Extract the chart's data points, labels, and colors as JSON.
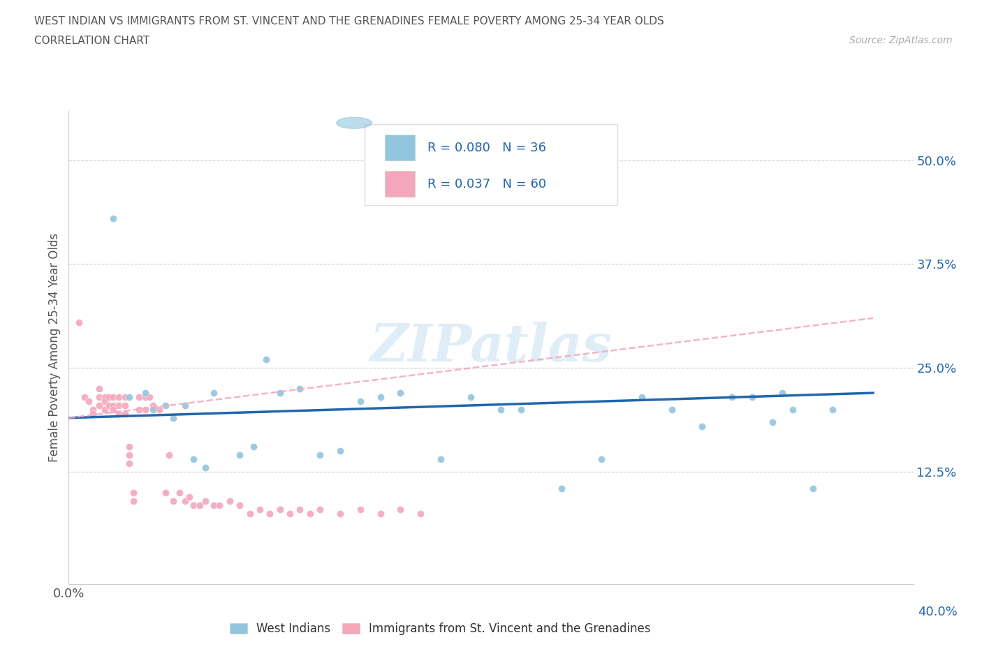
{
  "title_line1": "WEST INDIAN VS IMMIGRANTS FROM ST. VINCENT AND THE GRENADINES FEMALE POVERTY AMONG 25-34 YEAR OLDS",
  "title_line2": "CORRELATION CHART",
  "source": "Source: ZipAtlas.com",
  "ylabel": "Female Poverty Among 25-34 Year Olds",
  "watermark": "ZIPatlas",
  "legend_r1": "R = 0.080",
  "legend_n1": "N = 36",
  "legend_r2": "R = 0.037",
  "legend_n2": "N = 60",
  "xlim": [
    0.0,
    0.42
  ],
  "ylim": [
    -0.01,
    0.56
  ],
  "yticks": [
    0.0,
    0.125,
    0.25,
    0.375,
    0.5
  ],
  "ytick_labels": [
    "",
    "12.5%",
    "25.0%",
    "37.5%",
    "50.0%"
  ],
  "color_blue": "#92c5de",
  "color_pink": "#f4a6bd",
  "line_blue": "#2166ac",
  "line_pink": "#d6604d",
  "blue_scatter_x": [
    0.022,
    0.03,
    0.038,
    0.042,
    0.048,
    0.052,
    0.058,
    0.062,
    0.068,
    0.072,
    0.085,
    0.092,
    0.098,
    0.105,
    0.115,
    0.125,
    0.135,
    0.145,
    0.155,
    0.165,
    0.185,
    0.2,
    0.215,
    0.225,
    0.245,
    0.265,
    0.285,
    0.3,
    0.315,
    0.33,
    0.34,
    0.35,
    0.355,
    0.36,
    0.37,
    0.38
  ],
  "blue_scatter_y": [
    0.43,
    0.215,
    0.22,
    0.2,
    0.205,
    0.19,
    0.205,
    0.14,
    0.13,
    0.22,
    0.145,
    0.155,
    0.26,
    0.22,
    0.225,
    0.145,
    0.15,
    0.21,
    0.215,
    0.22,
    0.14,
    0.215,
    0.2,
    0.2,
    0.105,
    0.14,
    0.215,
    0.2,
    0.18,
    0.215,
    0.215,
    0.185,
    0.22,
    0.2,
    0.105,
    0.2
  ],
  "pink_scatter_x": [
    0.005,
    0.008,
    0.01,
    0.012,
    0.012,
    0.015,
    0.015,
    0.015,
    0.018,
    0.018,
    0.018,
    0.02,
    0.02,
    0.022,
    0.022,
    0.022,
    0.025,
    0.025,
    0.025,
    0.028,
    0.028,
    0.028,
    0.03,
    0.03,
    0.03,
    0.032,
    0.032,
    0.035,
    0.035,
    0.038,
    0.038,
    0.04,
    0.042,
    0.045,
    0.048,
    0.05,
    0.052,
    0.055,
    0.058,
    0.06,
    0.062,
    0.065,
    0.068,
    0.072,
    0.075,
    0.08,
    0.085,
    0.09,
    0.095,
    0.1,
    0.105,
    0.11,
    0.115,
    0.12,
    0.125,
    0.135,
    0.145,
    0.155,
    0.165,
    0.175
  ],
  "pink_scatter_y": [
    0.305,
    0.215,
    0.21,
    0.2,
    0.195,
    0.225,
    0.215,
    0.205,
    0.215,
    0.21,
    0.2,
    0.215,
    0.205,
    0.215,
    0.205,
    0.2,
    0.215,
    0.205,
    0.195,
    0.215,
    0.205,
    0.195,
    0.155,
    0.145,
    0.135,
    0.1,
    0.09,
    0.215,
    0.2,
    0.215,
    0.2,
    0.215,
    0.205,
    0.2,
    0.1,
    0.145,
    0.09,
    0.1,
    0.09,
    0.095,
    0.085,
    0.085,
    0.09,
    0.085,
    0.085,
    0.09,
    0.085,
    0.075,
    0.08,
    0.075,
    0.08,
    0.075,
    0.08,
    0.075,
    0.08,
    0.075,
    0.08,
    0.075,
    0.08,
    0.075
  ],
  "blue_line_x": [
    0.0,
    0.4
  ],
  "blue_line_y": [
    0.19,
    0.22
  ],
  "pink_line_x": [
    0.0,
    0.4
  ],
  "pink_line_y": [
    0.19,
    0.31
  ]
}
